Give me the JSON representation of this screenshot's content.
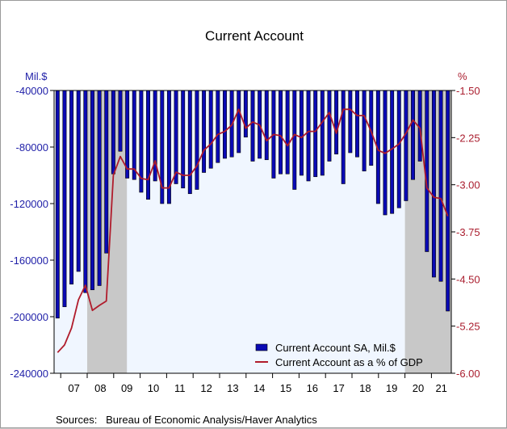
{
  "chart_data": {
    "type": "bar",
    "title": "Current Account",
    "left_axis": {
      "unit_label": "Mil.$",
      "ylim": [
        -240000,
        -40000
      ],
      "ticks": [
        -40000,
        -80000,
        -120000,
        -160000,
        -200000,
        -240000
      ],
      "color": "#1f1fa8"
    },
    "right_axis": {
      "unit_label": "%",
      "ylim": [
        -6.0,
        -1.5
      ],
      "ticks": [
        "-1.50",
        "-2.25",
        "-3.00",
        "-3.75",
        "-4.50",
        "-5.25",
        "-6.00"
      ],
      "color": "#aa1d2e"
    },
    "x_start": 2006.75,
    "x_end": 2021.75,
    "x_tick_labels": [
      "07",
      "08",
      "09",
      "10",
      "11",
      "12",
      "13",
      "14",
      "15",
      "16",
      "17",
      "18",
      "19",
      "20",
      "21"
    ],
    "recessions": [
      [
        2008.0,
        2009.5
      ],
      [
        2020.0,
        2021.75
      ]
    ],
    "grid": false,
    "legend_placement": "bottom-right",
    "series": [
      {
        "name": "Current Account SA, Mil.$",
        "type": "bar",
        "axis": "left",
        "color": "#0a0ab4",
        "values": [
          -201000,
          -193000,
          -177000,
          -168000,
          -183000,
          -181000,
          -178000,
          -155000,
          -99000,
          -83000,
          -102000,
          -103000,
          -112000,
          -117000,
          -104000,
          -120000,
          -120000,
          -106000,
          -109000,
          -113000,
          -110000,
          -98000,
          -95000,
          -91000,
          -88000,
          -87000,
          -84000,
          -73000,
          -90000,
          -88000,
          -89000,
          -102000,
          -99000,
          -99000,
          -110000,
          -100000,
          -104000,
          -101000,
          -100000,
          -90000,
          -85000,
          -106000,
          -84000,
          -87000,
          -97000,
          -93000,
          -120000,
          -128000,
          -127000,
          -123000,
          -118000,
          -103000,
          -90000,
          -154000,
          -172000,
          -175000,
          -196000
        ]
      },
      {
        "name": "Current Account as a % of GDP",
        "type": "line",
        "axis": "right",
        "color": "#b01c2c",
        "values": [
          -5.67,
          -5.55,
          -5.28,
          -4.83,
          -4.6,
          -5.0,
          -4.92,
          -4.85,
          -2.85,
          -2.55,
          -2.75,
          -2.75,
          -2.9,
          -2.92,
          -2.62,
          -3.05,
          -3.05,
          -2.8,
          -2.85,
          -2.85,
          -2.7,
          -2.45,
          -2.35,
          -2.2,
          -2.15,
          -2.05,
          -1.8,
          -2.1,
          -2.0,
          -2.05,
          -2.3,
          -2.2,
          -2.22,
          -2.38,
          -2.2,
          -2.25,
          -2.15,
          -2.15,
          -2.0,
          -1.85,
          -2.18,
          -1.8,
          -1.8,
          -1.9,
          -1.9,
          -2.15,
          -2.45,
          -2.5,
          -2.43,
          -2.35,
          -2.18,
          -1.97,
          -2.1,
          -3.05,
          -3.2,
          -3.22,
          -3.5
        ]
      }
    ]
  },
  "source_text": "Sources:   Bureau of Economic Analysis/Haver Analytics"
}
